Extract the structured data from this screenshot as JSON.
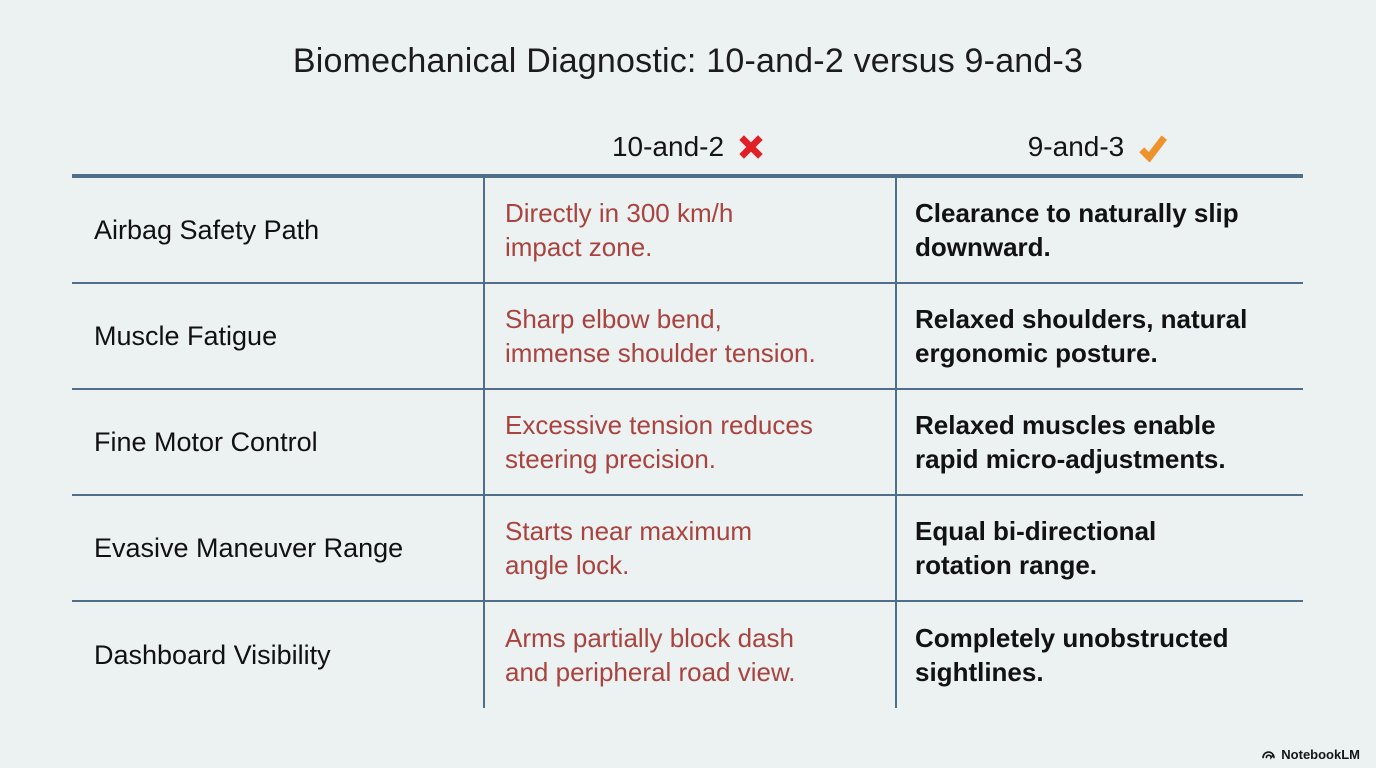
{
  "title": "Biomechanical Diagnostic: 10-and-2 versus 9-and-3",
  "table": {
    "columns": [
      {
        "label": "10-and-2",
        "icon": "cross-icon"
      },
      {
        "label": "9-and-3",
        "icon": "check-icon"
      }
    ],
    "rows": [
      {
        "label": "Airbag Safety Path",
        "bad": "Directly in 300 km/h\nimpact zone.",
        "good": "Clearance to naturally slip\ndownward."
      },
      {
        "label": "Muscle Fatigue",
        "bad": "Sharp elbow bend,\nimmense shoulder tension.",
        "good": "Relaxed shoulders, natural\nergonomic posture."
      },
      {
        "label": "Fine Motor Control",
        "bad": "Excessive tension reduces\nsteering precision.",
        "good": "Relaxed muscles enable\nrapid micro-adjustments."
      },
      {
        "label": "Evasive Maneuver Range",
        "bad": "Starts near maximum\nangle lock.",
        "good": "Equal bi-directional\nrotation range."
      },
      {
        "label": "Dashboard Visibility",
        "bad": "Arms partially block dash\nand peripheral road view.",
        "good": "Completely unobstructed\nsightlines."
      }
    ]
  },
  "watermark": {
    "label": "NotebookLM"
  },
  "colors": {
    "background": "#ecf1f1",
    "line": "#4e6e8a",
    "negative_text": "#a8433f",
    "positive_text": "#121212",
    "cross": "#e01f26",
    "check": "#f0922b"
  }
}
